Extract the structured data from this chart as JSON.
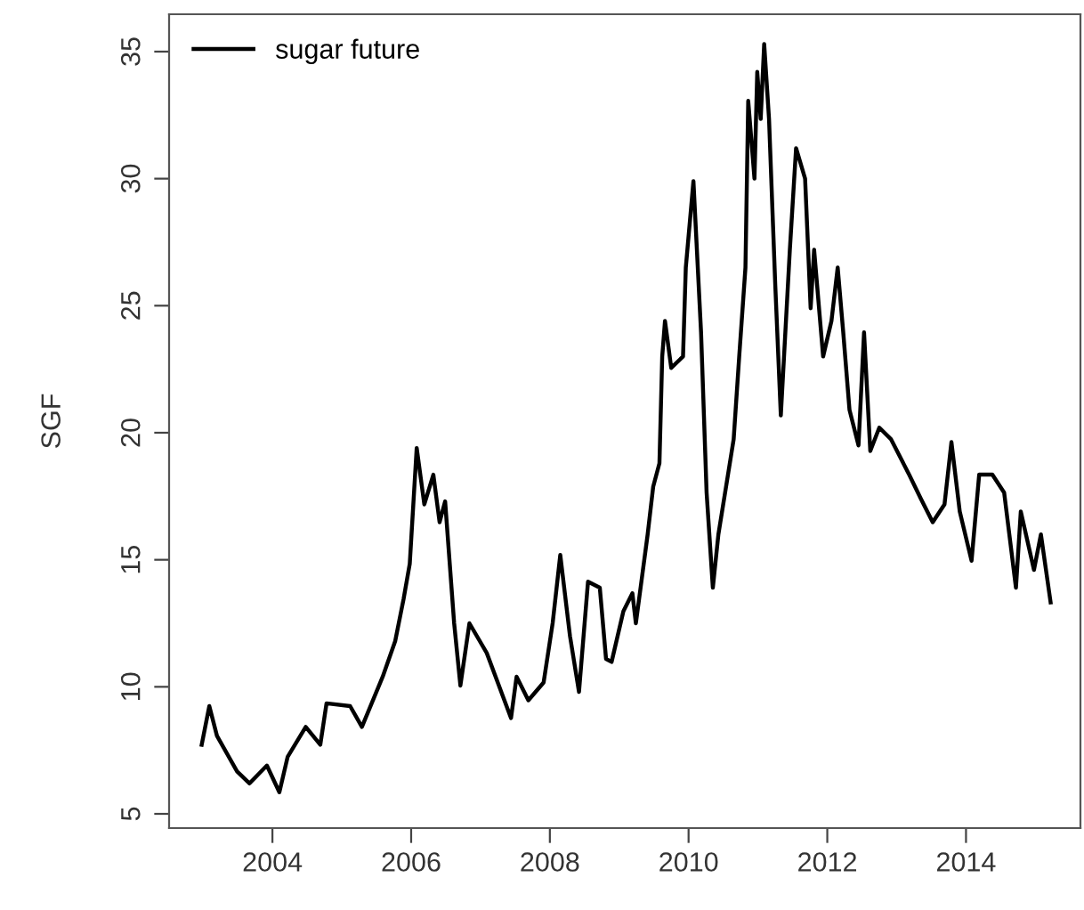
{
  "chart_data": {
    "type": "line",
    "ylabel": "SGF",
    "legend": "top left",
    "grid": false,
    "xlim": [
      2002.51,
      2015.65
    ],
    "xticks": [
      2004,
      2006,
      2008,
      2010,
      2012,
      2014
    ],
    "ylim": [
      4.44,
      36.47
    ],
    "yticks": [
      5,
      10,
      15,
      20,
      25,
      30,
      35
    ],
    "series": [
      {
        "name": "sugar future",
        "color": "#000000",
        "x": [
          2002.98,
          2003.09,
          2003.2,
          2003.49,
          2003.67,
          2003.92,
          2004.1,
          2004.22,
          2004.48,
          2004.69,
          2004.78,
          2005.12,
          2005.29,
          2005.59,
          2005.77,
          2005.89,
          2005.98,
          2006.08,
          2006.19,
          2006.32,
          2006.41,
          2006.49,
          2006.62,
          2006.71,
          2006.84,
          2007.09,
          2007.44,
          2007.52,
          2007.69,
          2007.91,
          2008.04,
          2008.15,
          2008.29,
          2008.42,
          2008.55,
          2008.72,
          2008.81,
          2008.89,
          2009.06,
          2009.19,
          2009.24,
          2009.41,
          2009.49,
          2009.58,
          2009.62,
          2009.66,
          2009.75,
          2009.92,
          2009.96,
          2010.07,
          2010.18,
          2010.26,
          2010.35,
          2010.43,
          2010.65,
          2010.73,
          2010.82,
          2010.86,
          2010.95,
          2010.99,
          2011.04,
          2011.09,
          2011.16,
          2011.25,
          2011.33,
          2011.46,
          2011.55,
          2011.68,
          2011.76,
          2011.81,
          2011.94,
          2012.06,
          2012.15,
          2012.23,
          2012.32,
          2012.45,
          2012.53,
          2012.62,
          2012.75,
          2012.92,
          2013.18,
          2013.35,
          2013.52,
          2013.69,
          2013.79,
          2013.91,
          2014.08,
          2014.19,
          2014.38,
          2014.55,
          2014.72,
          2014.79,
          2014.98,
          2015.08,
          2015.22
        ],
        "values": [
          7.72,
          9.24,
          8.07,
          6.67,
          6.2,
          6.9,
          5.85,
          7.25,
          8.42,
          7.72,
          9.35,
          9.24,
          8.42,
          10.4,
          11.8,
          13.44,
          14.84,
          19.4,
          17.18,
          18.35,
          16.48,
          17.3,
          12.5,
          10.05,
          12.5,
          11.33,
          8.77,
          10.4,
          9.47,
          10.17,
          12.5,
          15.19,
          12.0,
          9.8,
          14.14,
          13.9,
          11.1,
          10.98,
          12.97,
          13.68,
          12.5,
          16.0,
          17.88,
          18.8,
          23.0,
          24.4,
          22.55,
          23.0,
          26.5,
          29.9,
          23.95,
          17.64,
          13.9,
          16.0,
          19.74,
          23.0,
          26.5,
          33.06,
          30.0,
          34.2,
          32.35,
          35.3,
          32.35,
          25.8,
          20.68,
          27.2,
          31.2,
          30.0,
          24.9,
          27.2,
          23.0,
          24.4,
          26.5,
          23.95,
          20.9,
          19.5,
          23.95,
          19.28,
          20.2,
          19.74,
          18.35,
          17.4,
          16.48,
          17.18,
          19.63,
          16.9,
          14.96,
          18.35,
          18.35,
          17.64,
          13.9,
          16.9,
          14.6,
          16.0,
          13.32
        ]
      }
    ]
  }
}
